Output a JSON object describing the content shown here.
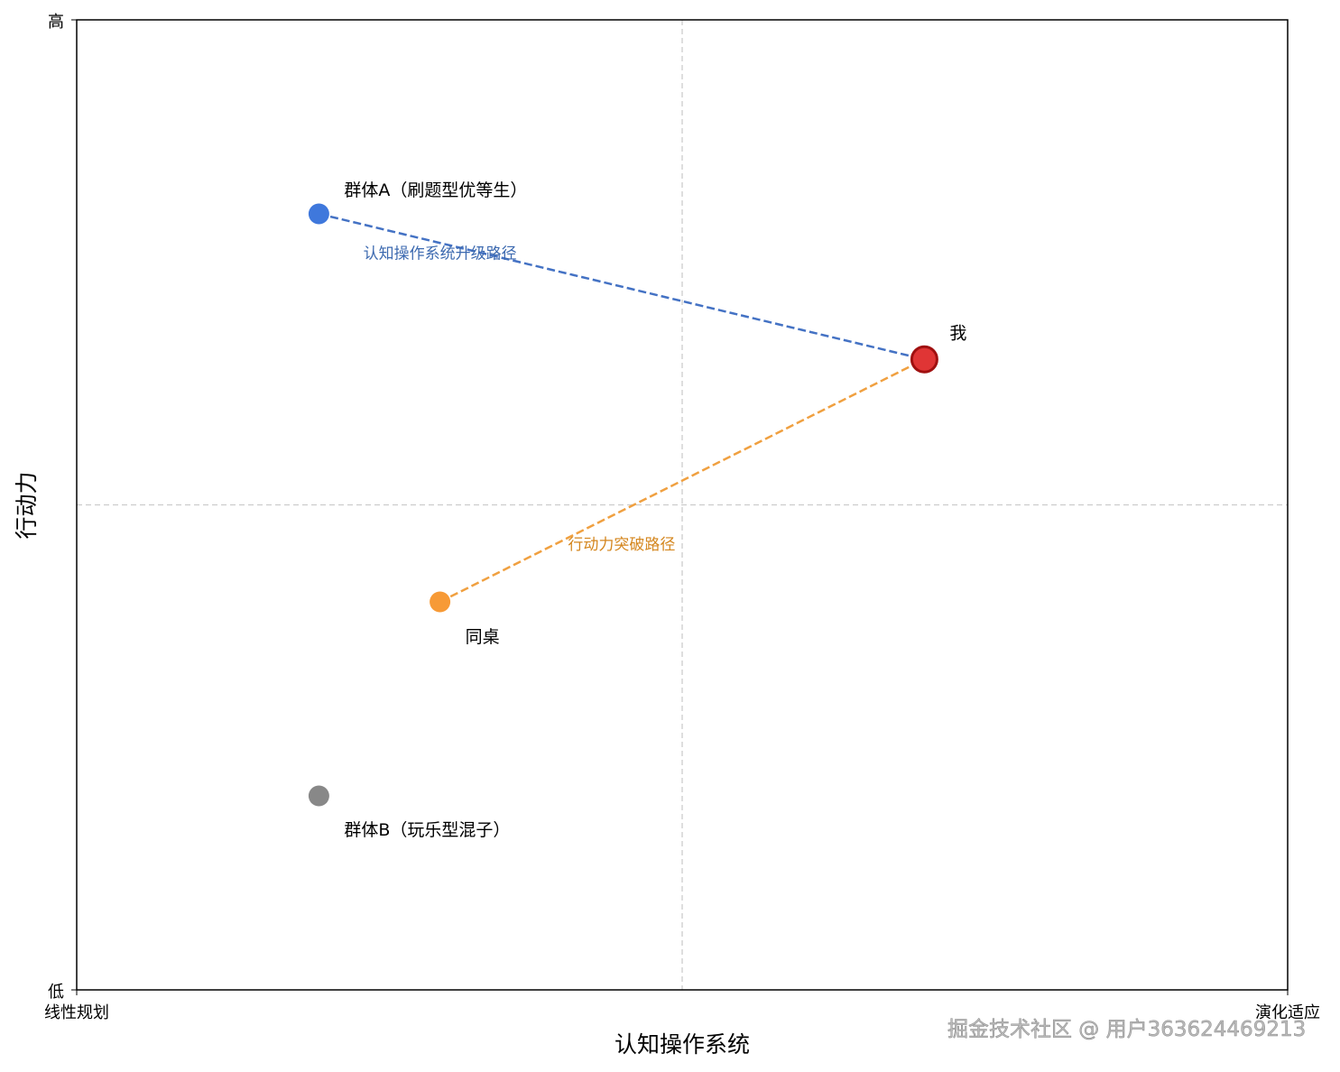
{
  "chart_data": {
    "type": "scatter",
    "xlabel": "认知操作系统",
    "ylabel": "行动力",
    "xlim": [
      0,
      1
    ],
    "ylim": [
      0,
      1
    ],
    "x_tick_labels": [
      "线性规划",
      "演化适应"
    ],
    "y_tick_labels": [
      "低",
      "高"
    ],
    "reference_lines": {
      "x": 0.5,
      "y": 0.5,
      "style": "dashed",
      "color": "#cccccc"
    },
    "grid": false,
    "points": [
      {
        "label": "群体A（刷题型优等生）",
        "x": 0.2,
        "y": 0.8,
        "color": "#3f78dc"
      },
      {
        "label": "我",
        "x": 0.7,
        "y": 0.65,
        "color": "#e03535",
        "edge": "#a01010"
      },
      {
        "label": "同桌",
        "x": 0.3,
        "y": 0.4,
        "color": "#f79a36"
      },
      {
        "label": "群体B（玩乐型混子）",
        "x": 0.2,
        "y": 0.2,
        "color": "#888888"
      }
    ],
    "paths": [
      {
        "label": "认知操作系统升级路径",
        "from": [
          0.2,
          0.8
        ],
        "to": [
          0.7,
          0.65
        ],
        "color": "#4472c4",
        "label_color": "#3d6ab0"
      },
      {
        "label": "行动力突破路径",
        "from": [
          0.3,
          0.4
        ],
        "to": [
          0.7,
          0.65
        ],
        "color": "#f0a040",
        "label_color": "#d4861e"
      }
    ]
  },
  "watermark": "掘金技术社区 @ 用户363624469213"
}
